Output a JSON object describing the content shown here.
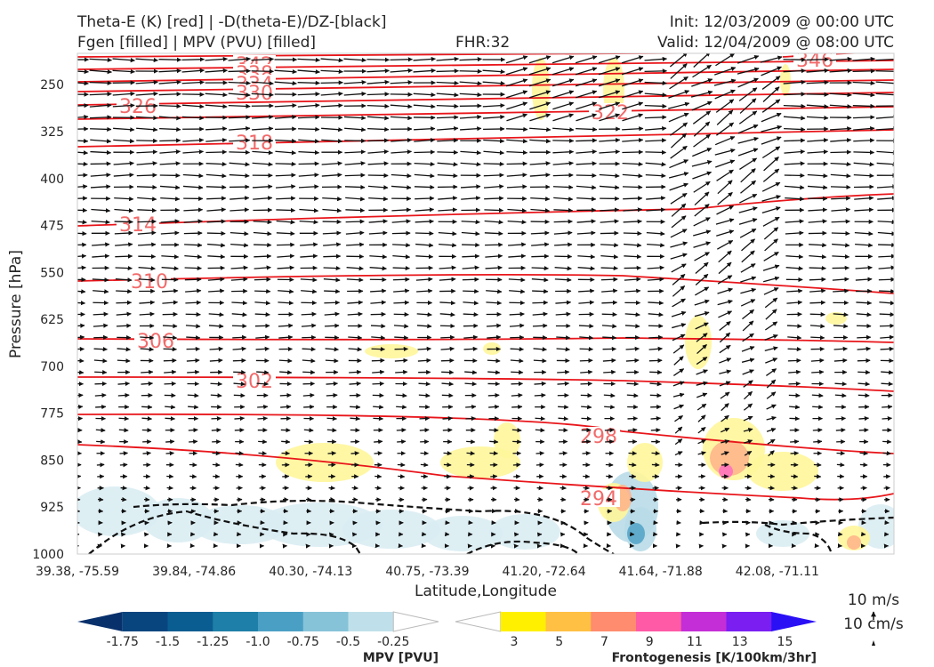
{
  "header": {
    "line1_left": "Theta-E (K) [red] | -D(theta-E)/DZ-[black]",
    "line2_left": "Fgen [filled] | MPV (PVU) [filled]",
    "fhr": "FHR:32",
    "init": "Init: 12/03/2009 @ 00:00 UTC",
    "valid": "Valid: 12/04/2009 @ 08:00 UTC"
  },
  "reference_vectors": {
    "horizontal": "10 m/s",
    "vertical": "10 cm/s"
  },
  "chart_data": {
    "type": "cross-section",
    "xlabel": "Latitude,Longitude",
    "ylabel": "Pressure [hPa]",
    "x_ticks": [
      "39.38, -75.59",
      "39.84, -74.86",
      "40.30, -74.13",
      "40.75, -73.39",
      "41.20, -72.64",
      "41.64, -71.88",
      "42.08, -71.11"
    ],
    "y_ticks": [
      250,
      325,
      400,
      475,
      550,
      625,
      700,
      775,
      850,
      925,
      1000
    ],
    "ylim": [
      1000,
      200
    ],
    "theta_e_contours": [
      {
        "value": 342,
        "label": "342"
      },
      {
        "value": 338,
        "label": "338"
      },
      {
        "value": 334,
        "label": "334"
      },
      {
        "value": 330,
        "label": "330"
      },
      {
        "value": 326,
        "label": "326"
      },
      {
        "value": 322,
        "label": "322"
      },
      {
        "value": 318,
        "label": "318"
      },
      {
        "value": 314,
        "label": "314"
      },
      {
        "value": 310,
        "label": "310"
      },
      {
        "value": 306,
        "label": "306"
      },
      {
        "value": 302,
        "label": "302"
      },
      {
        "value": 298,
        "label": "298"
      },
      {
        "value": 294,
        "label": "294"
      },
      {
        "value": 346,
        "label": "346"
      }
    ],
    "colorbars": [
      {
        "title": "MPV [PVU]",
        "ticks": [
          "-1.75",
          "-1.5",
          "-1.25",
          "-1.0",
          "-0.75",
          "-0.5",
          "-0.25"
        ],
        "colors": [
          "#08306b",
          "#08457e",
          "#0a5d91",
          "#1e7fa8",
          "#4a9fc4",
          "#86c3d9",
          "#bfe0ea",
          "#ffffff"
        ]
      },
      {
        "title": "Frontogenesis [K/100km/3hr]",
        "ticks": [
          "3",
          "5",
          "7",
          "9",
          "11",
          "13",
          "15"
        ],
        "colors": [
          "#ffffff",
          "#fff000",
          "#ffc043",
          "#ff8c6e",
          "#ff5aa5",
          "#c42ed6",
          "#7a1ef2",
          "#2a10f5"
        ]
      }
    ]
  }
}
